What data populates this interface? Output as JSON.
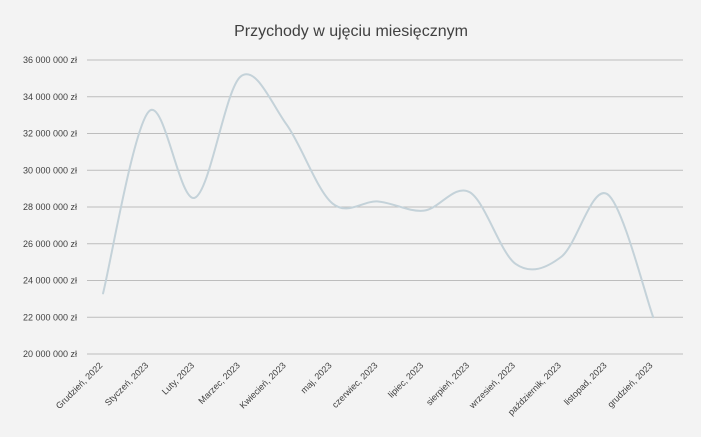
{
  "chart_data": {
    "type": "line",
    "title": "Przychody w ujęciu miesięcznym",
    "xlabel": "",
    "ylabel": "",
    "categories": [
      "Grudzień, 2022",
      "Styczeń, 2023",
      "Luty, 2023",
      "Marzec, 2023",
      "Kwiecień, 2023",
      "maj, 2023",
      "czerwiec, 2023",
      "lipiec, 2023",
      "sierpień, 2023",
      "wrzesień, 2023",
      "październik, 2023",
      "listopad, 2023",
      "grudzień, 2023"
    ],
    "series": [
      {
        "name": "",
        "color": "#c4d2d9",
        "smooth": true,
        "values": [
          23300000,
          33200000,
          28500000,
          35100000,
          32500000,
          28200000,
          28300000,
          27800000,
          28800000,
          24900000,
          25300000,
          28700000,
          22000000
        ]
      }
    ],
    "ylim": [
      20000000,
      36000000
    ],
    "yticks": [
      20000000,
      22000000,
      24000000,
      26000000,
      28000000,
      30000000,
      32000000,
      34000000,
      36000000
    ],
    "ytick_labels": [
      "20 000 000 zł",
      "22 000 000 zł",
      "24 000 000 zł",
      "26 000 000 zł",
      "28 000 000 zł",
      "30 000 000 zł",
      "32 000 000 zł",
      "34 000 000 zł",
      "36 000 000 zł"
    ],
    "grid": true,
    "legend": "none",
    "colors": {
      "background": "#f3f3f3",
      "grid": "#bdbdbd",
      "text": "#404040"
    }
  }
}
